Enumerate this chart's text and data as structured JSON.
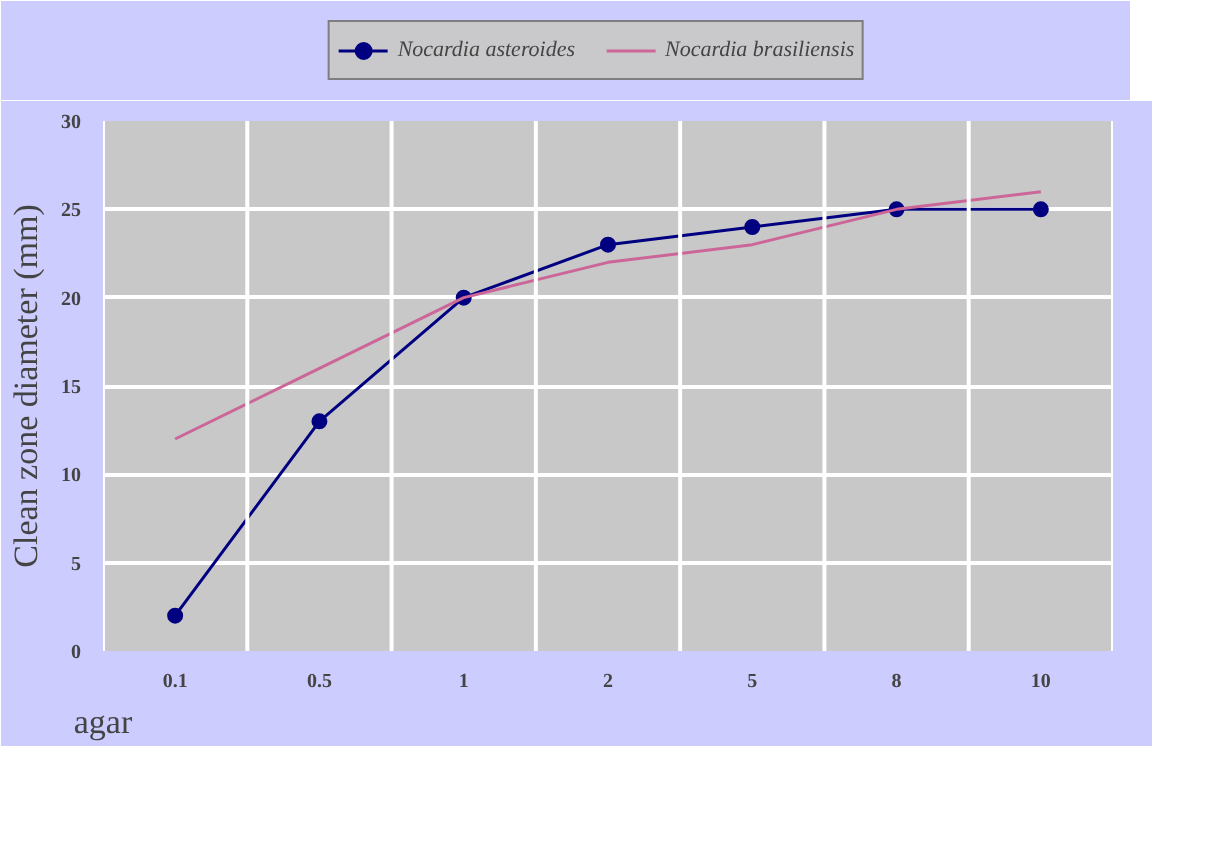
{
  "chart_data": {
    "type": "line",
    "ylabel": "Clean zone diameter (mm)",
    "xlabel": "agar",
    "categories": [
      "0.1",
      "0.5",
      "1",
      "2",
      "5",
      "8",
      "10"
    ],
    "series": [
      {
        "name": "Nocardia asteroides",
        "color": "#000080",
        "marker": "circle",
        "values": [
          2,
          13,
          20,
          23,
          24,
          25,
          25
        ]
      },
      {
        "name": "Nocardia brasiliensis",
        "color": "#cc6699",
        "marker": "none",
        "values": [
          12,
          16,
          20,
          22,
          23,
          25,
          26
        ]
      }
    ],
    "ylim": [
      0,
      30
    ],
    "yticks": [
      0,
      5,
      10,
      15,
      20,
      25,
      30
    ],
    "grid": true,
    "legend": "top",
    "line_style": "solid"
  }
}
